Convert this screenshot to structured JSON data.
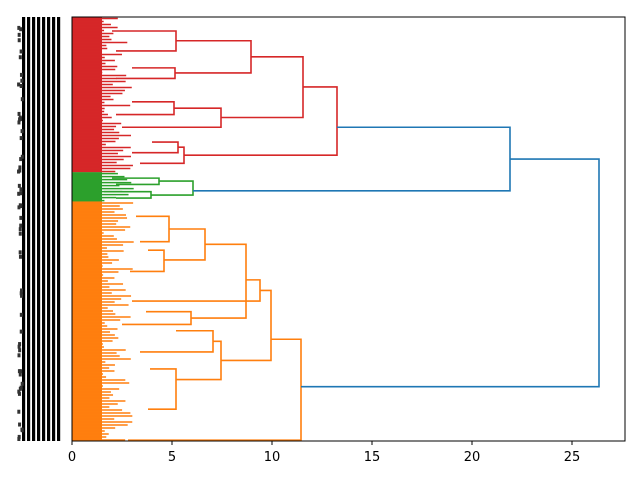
{
  "chart_data": {
    "type": "dendrogram",
    "orientation": "left",
    "title": "",
    "xlabel": "",
    "ylabel": "",
    "xlim": [
      0,
      27.65
    ],
    "xticks": [
      0,
      5,
      10,
      15,
      20,
      25
    ],
    "xtick_labels": [
      "0",
      "5",
      "10",
      "15",
      "20",
      "25"
    ],
    "leaf_labels_legible": false,
    "colors": {
      "red": "#d62728",
      "green": "#2ca02c",
      "orange": "#ff7f0e",
      "blue": "#1f77b4",
      "leaf_label": "#000000"
    },
    "clusters": [
      {
        "name": "red",
        "color": "#d62728",
        "leaf_span": [
          0,
          0.366
        ],
        "top_height": 13.25
      },
      {
        "name": "green",
        "color": "#2ca02c",
        "leaf_span": [
          0.366,
          0.435
        ],
        "top_height": 6.05
      },
      {
        "name": "orange",
        "color": "#ff7f0e",
        "leaf_span": [
          0.435,
          1.0
        ],
        "top_height": 11.45
      }
    ],
    "links": [
      {
        "color": "#d62728",
        "height": 5.2,
        "from": [
          0.033,
          0.08
        ],
        "leaf_height": [
          2.0,
          2.2
        ]
      },
      {
        "color": "#d62728",
        "height": 5.15,
        "from": [
          0.12,
          0.145
        ],
        "leaf_height": [
          3.0,
          2.2
        ]
      },
      {
        "color": "#d62728",
        "height": 8.95,
        "from": [
          0.056,
          0.132
        ],
        "leaf_height": [
          5.2,
          5.15
        ]
      },
      {
        "color": "#d62728",
        "height": 5.1,
        "from": [
          0.2,
          0.23
        ],
        "leaf_height": [
          3.0,
          2.2
        ]
      },
      {
        "color": "#d62728",
        "height": 7.45,
        "from": [
          0.215,
          0.26
        ],
        "leaf_height": [
          5.1,
          2.5
        ]
      },
      {
        "color": "#d62728",
        "height": 11.55,
        "from": [
          0.094,
          0.237
        ],
        "leaf_height": [
          8.95,
          7.45
        ]
      },
      {
        "color": "#d62728",
        "height": 5.3,
        "from": [
          0.295,
          0.32
        ],
        "leaf_height": [
          4.0,
          3.0
        ]
      },
      {
        "color": "#d62728",
        "height": 5.6,
        "from": [
          0.307,
          0.345
        ],
        "leaf_height": [
          5.3,
          3.4
        ]
      },
      {
        "color": "#d62728",
        "height": 13.25,
        "from": [
          0.165,
          0.326
        ],
        "leaf_height": [
          11.55,
          5.6
        ]
      },
      {
        "color": "#2ca02c",
        "height": 4.35,
        "from": [
          0.38,
          0.395
        ],
        "leaf_height": [
          2.0,
          2.2
        ]
      },
      {
        "color": "#2ca02c",
        "height": 3.95,
        "from": [
          0.412,
          0.427
        ],
        "leaf_height": [
          1.6,
          2.2
        ]
      },
      {
        "color": "#2ca02c",
        "height": 6.05,
        "from": [
          0.387,
          0.42
        ],
        "leaf_height": [
          4.35,
          3.95
        ]
      },
      {
        "color": "#ff7f0e",
        "height": 4.85,
        "from": [
          0.47,
          0.53
        ],
        "leaf_height": [
          3.2,
          3.4
        ]
      },
      {
        "color": "#ff7f0e",
        "height": 6.65,
        "from": [
          0.5,
          0.573
        ],
        "leaf_height": [
          4.85,
          4.6
        ]
      },
      {
        "color": "#ff7f0e",
        "height": 4.6,
        "from": [
          0.55,
          0.6
        ],
        "leaf_height": [
          3.8,
          2.9
        ]
      },
      {
        "color": "#ff7f0e",
        "height": 8.7,
        "from": [
          0.536,
          0.71
        ],
        "leaf_height": [
          6.65,
          5.95
        ]
      },
      {
        "color": "#ff7f0e",
        "height": 5.95,
        "from": [
          0.695,
          0.725
        ],
        "leaf_height": [
          3.7,
          2.5
        ]
      },
      {
        "color": "#ff7f0e",
        "height": 9.4,
        "from": [
          0.62,
          0.67
        ],
        "leaf_height": [
          8.7,
          3.0
        ]
      },
      {
        "color": "#ff7f0e",
        "height": 7.05,
        "from": [
          0.74,
          0.79
        ],
        "leaf_height": [
          5.2,
          3.4
        ]
      },
      {
        "color": "#ff7f0e",
        "height": 7.45,
        "from": [
          0.765,
          0.855
        ],
        "leaf_height": [
          7.05,
          5.2
        ]
      },
      {
        "color": "#ff7f0e",
        "height": 5.2,
        "from": [
          0.83,
          0.925
        ],
        "leaf_height": [
          3.9,
          3.8
        ]
      },
      {
        "color": "#ff7f0e",
        "height": 9.95,
        "from": [
          0.645,
          0.81
        ],
        "leaf_height": [
          9.4,
          7.45
        ]
      },
      {
        "color": "#ff7f0e",
        "height": 11.45,
        "from": [
          0.76,
          0.998
        ],
        "leaf_height": [
          9.95,
          2.8
        ]
      },
      {
        "color": "#1f77b4",
        "height": 21.9,
        "from": [
          0.26,
          0.41
        ],
        "leaf_height": [
          13.25,
          6.05
        ]
      },
      {
        "color": "#1f77b4",
        "height": 26.35,
        "from": [
          0.335,
          0.872
        ],
        "leaf_height": [
          21.9,
          11.45
        ]
      }
    ]
  }
}
